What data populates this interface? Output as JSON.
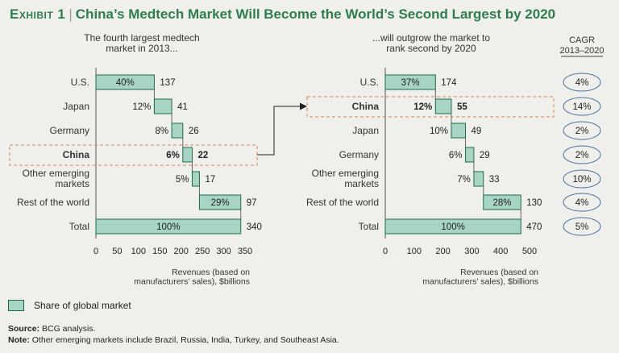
{
  "title": {
    "exhibit": "Exhibit 1",
    "separator": "|",
    "text": "China’s Medtech Market Will Become the World’s Second Largest by 2020"
  },
  "colors": {
    "bar_fill": "#a7d4c4",
    "bar_stroke": "#1e6b4a",
    "title": "#2f7d4f",
    "highlight": "#d8845a",
    "cagr_oval": "#4a6fa5"
  },
  "chart_data": [
    {
      "type": "bar",
      "subtype": "waterfall",
      "title": "The fourth largest medtech market in 2013...",
      "title_lines": [
        "The fourth largest medtech",
        "market in 2013..."
      ],
      "categories": [
        "U.S.",
        "Japan",
        "Germany",
        "China",
        "Other emerging markets",
        "Rest of the world",
        "Total"
      ],
      "category_lines": [
        [
          "U.S."
        ],
        [
          "Japan"
        ],
        [
          "Germany"
        ],
        [
          "China"
        ],
        [
          "Other emerging",
          "markets"
        ],
        [
          "Rest of the world"
        ],
        [
          "Total"
        ]
      ],
      "values": [
        137,
        41,
        26,
        22,
        17,
        97,
        340
      ],
      "share_labels": [
        "40%",
        "12%",
        "8%",
        "6%",
        "5%",
        "29%",
        "100%"
      ],
      "highlight": "China",
      "xlim": [
        0,
        350
      ],
      "ticks": [
        0,
        50,
        100,
        150,
        200,
        250,
        300,
        350
      ],
      "xlabel_lines": [
        "Revenues (based on",
        "manufacturers’ sales), $billions"
      ]
    },
    {
      "type": "bar",
      "subtype": "waterfall",
      "title": "...will outgrow the market to rank second by 2020",
      "title_lines": [
        "...will outgrow the market to",
        "rank second by 2020"
      ],
      "categories": [
        "U.S.",
        "China",
        "Japan",
        "Germany",
        "Other emerging markets",
        "Rest of the world",
        "Total"
      ],
      "category_lines": [
        [
          "U.S."
        ],
        [
          "China"
        ],
        [
          "Japan"
        ],
        [
          "Germany"
        ],
        [
          "Other emerging",
          "markets"
        ],
        [
          "Rest of the world"
        ],
        [
          "Total"
        ]
      ],
      "values": [
        174,
        55,
        49,
        29,
        33,
        130,
        470
      ],
      "share_labels": [
        "37%",
        "12%",
        "10%",
        "6%",
        "7%",
        "28%",
        "100%"
      ],
      "highlight": "China",
      "xlim": [
        0,
        500
      ],
      "ticks": [
        0,
        100,
        200,
        300,
        400,
        500
      ],
      "xlabel_lines": [
        "Revenues (based on",
        "manufacturers’ sales), $billions"
      ],
      "cagr_header_lines": [
        "CAGR",
        "2013–2020"
      ],
      "cagr": [
        "4%",
        "14%",
        "2%",
        "2%",
        "10%",
        "4%",
        "5%"
      ]
    }
  ],
  "legend": {
    "label": "Share of global market"
  },
  "source": {
    "label": "Source:",
    "text": "BCG analysis."
  },
  "note": {
    "label": "Note:",
    "text": "Other emerging markets include Brazil, Russia, India, Turkey, and Southeast Asia."
  }
}
